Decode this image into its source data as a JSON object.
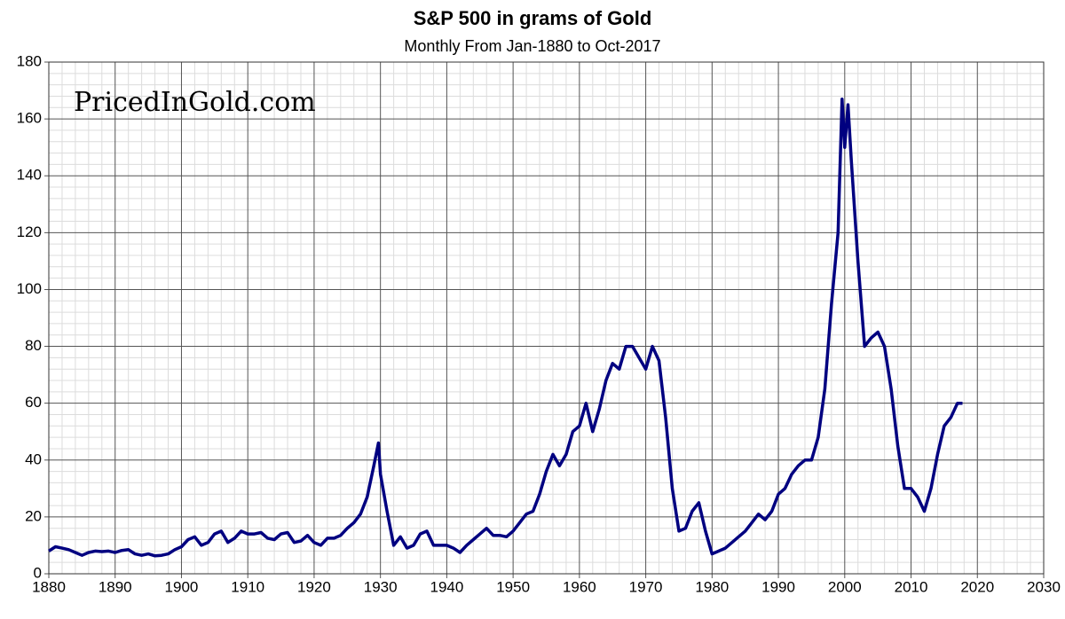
{
  "chart_data": {
    "type": "line",
    "title": "S&P 500 in grams of Gold",
    "subtitle": "Monthly From Jan-1880 to Oct-2017",
    "watermark": "PricedInGold.com",
    "color": "#000080",
    "grid": true,
    "minor_grid_divisions": 5,
    "xlim": [
      1880,
      2030
    ],
    "xticks": [
      1880,
      1890,
      1900,
      1910,
      1920,
      1930,
      1940,
      1950,
      1960,
      1970,
      1980,
      1990,
      2000,
      2010,
      2020,
      2030
    ],
    "ylim": [
      0,
      180
    ],
    "yticks": [
      0,
      20,
      40,
      60,
      80,
      100,
      120,
      140,
      160,
      180
    ],
    "x": [
      1880,
      1881,
      1882,
      1883,
      1884,
      1885,
      1886,
      1887,
      1888,
      1889,
      1890,
      1891,
      1892,
      1893,
      1894,
      1895,
      1896,
      1897,
      1898,
      1899,
      1900,
      1901,
      1902,
      1903,
      1904,
      1905,
      1906,
      1907,
      1908,
      1909,
      1910,
      1911,
      1912,
      1913,
      1914,
      1915,
      1916,
      1917,
      1918,
      1919,
      1920,
      1921,
      1922,
      1923,
      1924,
      1925,
      1926,
      1927,
      1928,
      1929,
      1929.7,
      1930,
      1931,
      1932,
      1933,
      1934,
      1935,
      1936,
      1937,
      1938,
      1939,
      1940,
      1941,
      1942,
      1943,
      1944,
      1945,
      1946,
      1947,
      1948,
      1949,
      1950,
      1951,
      1952,
      1953,
      1954,
      1955,
      1956,
      1957,
      1958,
      1959,
      1960,
      1961,
      1962,
      1963,
      1964,
      1965,
      1966,
      1967,
      1968,
      1969,
      1970,
      1971,
      1972,
      1973,
      1974,
      1975,
      1976,
      1977,
      1978,
      1979,
      1980,
      1981,
      1982,
      1983,
      1984,
      1985,
      1986,
      1987,
      1988,
      1989,
      1990,
      1991,
      1992,
      1993,
      1994,
      1995,
      1996,
      1997,
      1998,
      1999,
      1999.6,
      2000,
      2000.5,
      2001,
      2002,
      2003,
      2004,
      2005,
      2006,
      2007,
      2008,
      2009,
      2010,
      2011,
      2012,
      2013,
      2014,
      2015,
      2016,
      2017,
      2017.75
    ],
    "values": [
      8,
      9.5,
      9,
      8.5,
      7.5,
      6.5,
      7.5,
      8,
      7.8,
      8,
      7.5,
      8.2,
      8.5,
      7,
      6.5,
      7,
      6.3,
      6.5,
      7,
      8.5,
      9.5,
      12,
      13,
      10,
      11,
      14,
      15,
      11,
      12.5,
      15,
      14,
      14,
      14.5,
      12.5,
      12,
      14,
      14.5,
      11,
      11.5,
      13.5,
      11,
      10,
      12.5,
      12.5,
      13.5,
      16,
      18,
      21,
      27,
      38,
      46,
      35,
      22,
      10,
      13,
      9,
      10,
      14,
      15,
      10,
      10,
      10,
      9,
      7.5,
      10,
      12,
      14,
      16,
      13.5,
      13.5,
      13,
      15,
      18,
      21,
      22,
      28,
      36,
      42,
      38,
      42,
      50,
      52,
      60,
      50,
      58,
      68,
      74,
      72,
      80,
      80,
      76,
      72,
      80,
      75,
      55,
      30,
      15,
      16,
      22,
      25,
      15,
      7,
      8,
      9,
      11,
      13,
      15,
      18,
      21,
      19,
      22,
      28,
      30,
      35,
      38,
      40,
      40,
      48,
      65,
      95,
      120,
      167,
      150,
      165,
      145,
      110,
      80,
      83,
      85,
      80,
      65,
      45,
      30,
      30,
      27,
      22,
      30,
      42,
      52,
      55,
      60,
      60
    ]
  }
}
